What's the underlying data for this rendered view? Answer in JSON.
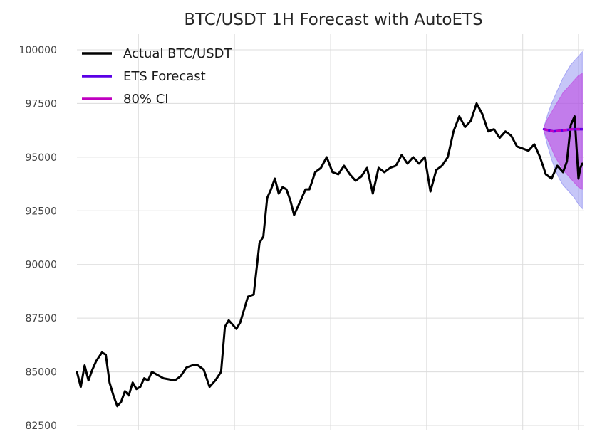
{
  "chart_data": {
    "type": "line",
    "title": "BTC/USDT 1H Forecast with AutoETS",
    "xlabel": "",
    "ylabel": "",
    "x_range": [
      0,
      264
    ],
    "ylim": [
      82500,
      100000
    ],
    "y_ticks": [
      82500,
      85000,
      87500,
      90000,
      92500,
      95000,
      97500,
      100000
    ],
    "y_tick_labels": [
      "82500",
      "85000",
      "87500",
      "90000",
      "92500",
      "95000",
      "97500",
      "100000"
    ],
    "x_gridlines": [
      32,
      82,
      132,
      182,
      232,
      261
    ],
    "x_tick_labels": [
      "",
      "",
      "",
      "",
      "",
      ""
    ],
    "grid": true,
    "legend": {
      "placement": "top-left",
      "entries": [
        {
          "label": "Actual BTC/USDT",
          "color": "#000000"
        },
        {
          "label": "ETS Forecast",
          "color": "#5a00e6"
        },
        {
          "label": "80% CI",
          "color": "#c000c0"
        }
      ]
    },
    "series": [
      {
        "name": "Actual BTC/USDT",
        "color": "#000000",
        "x": [
          0,
          2,
          4,
          6,
          8,
          10,
          13,
          15,
          17,
          19,
          21,
          23,
          25,
          27,
          29,
          31,
          33,
          35,
          37,
          39,
          41,
          43,
          45,
          48,
          51,
          54,
          57,
          60,
          63,
          66,
          69,
          72,
          75,
          77,
          79,
          81,
          83,
          85,
          87,
          89,
          92,
          95,
          97,
          99,
          101,
          103,
          105,
          107,
          109,
          111,
          113,
          115,
          117,
          119,
          121,
          124,
          127,
          130,
          133,
          136,
          139,
          142,
          145,
          148,
          151,
          154,
          157,
          160,
          163,
          166,
          169,
          172,
          175,
          178,
          181,
          184,
          187,
          190,
          193,
          196,
          199,
          202,
          205,
          208,
          211,
          214,
          217,
          220,
          223,
          226,
          229,
          232,
          235,
          238,
          241,
          244,
          247,
          250,
          253,
          255,
          257,
          259,
          261,
          262,
          263
        ],
        "y": [
          85000,
          84300,
          85300,
          84600,
          85100,
          85500,
          85900,
          85800,
          84500,
          83900,
          83400,
          83600,
          84100,
          83900,
          84500,
          84200,
          84300,
          84700,
          84600,
          85000,
          84900,
          84800,
          84700,
          84650,
          84600,
          84800,
          85200,
          85300,
          85300,
          85100,
          84300,
          84600,
          85000,
          87100,
          87400,
          87200,
          87000,
          87300,
          87900,
          88500,
          88600,
          91000,
          91300,
          93100,
          93500,
          94000,
          93300,
          93600,
          93500,
          93000,
          92300,
          92700,
          93100,
          93500,
          93500,
          94300,
          94500,
          95000,
          94300,
          94200,
          94600,
          94200,
          93900,
          94100,
          94500,
          93300,
          94500,
          94300,
          94500,
          94600,
          95100,
          94700,
          95000,
          94700,
          95000,
          93400,
          94400,
          94600,
          95000,
          96200,
          96900,
          96400,
          96700,
          97500,
          97000,
          96200,
          96300,
          95900,
          96200,
          96000,
          95500,
          95400,
          95300,
          95600,
          95000,
          94200,
          94000,
          94600,
          94300,
          94800,
          96500,
          96900,
          94000,
          94500,
          94700
        ]
      },
      {
        "name": "ETS Forecast",
        "color": "#5a00e6",
        "x": [
          243,
          248,
          253,
          258,
          263
        ],
        "y": [
          96300,
          96200,
          96250,
          96300,
          96300
        ]
      }
    ],
    "bands": [
      {
        "name": "outer interval",
        "color": "#8080f0",
        "x": [
          243,
          245,
          247,
          249,
          251,
          253,
          255,
          257,
          259,
          261,
          263
        ],
        "low": [
          96200,
          95500,
          94900,
          94400,
          94000,
          93700,
          93500,
          93300,
          93100,
          92800,
          92600
        ],
        "high": [
          96400,
          97000,
          97500,
          97900,
          98300,
          98700,
          99000,
          99300,
          99500,
          99700,
          99900
        ]
      },
      {
        "name": "80% CI",
        "color": "#c040e0",
        "x": [
          243,
          245,
          247,
          249,
          251,
          253,
          255,
          257,
          259,
          261,
          263
        ],
        "low": [
          96200,
          95800,
          95400,
          95000,
          94700,
          94400,
          94200,
          94000,
          93800,
          93600,
          93500
        ],
        "high": [
          96400,
          96800,
          97100,
          97400,
          97700,
          98000,
          98200,
          98400,
          98600,
          98800,
          98900
        ]
      }
    ]
  }
}
